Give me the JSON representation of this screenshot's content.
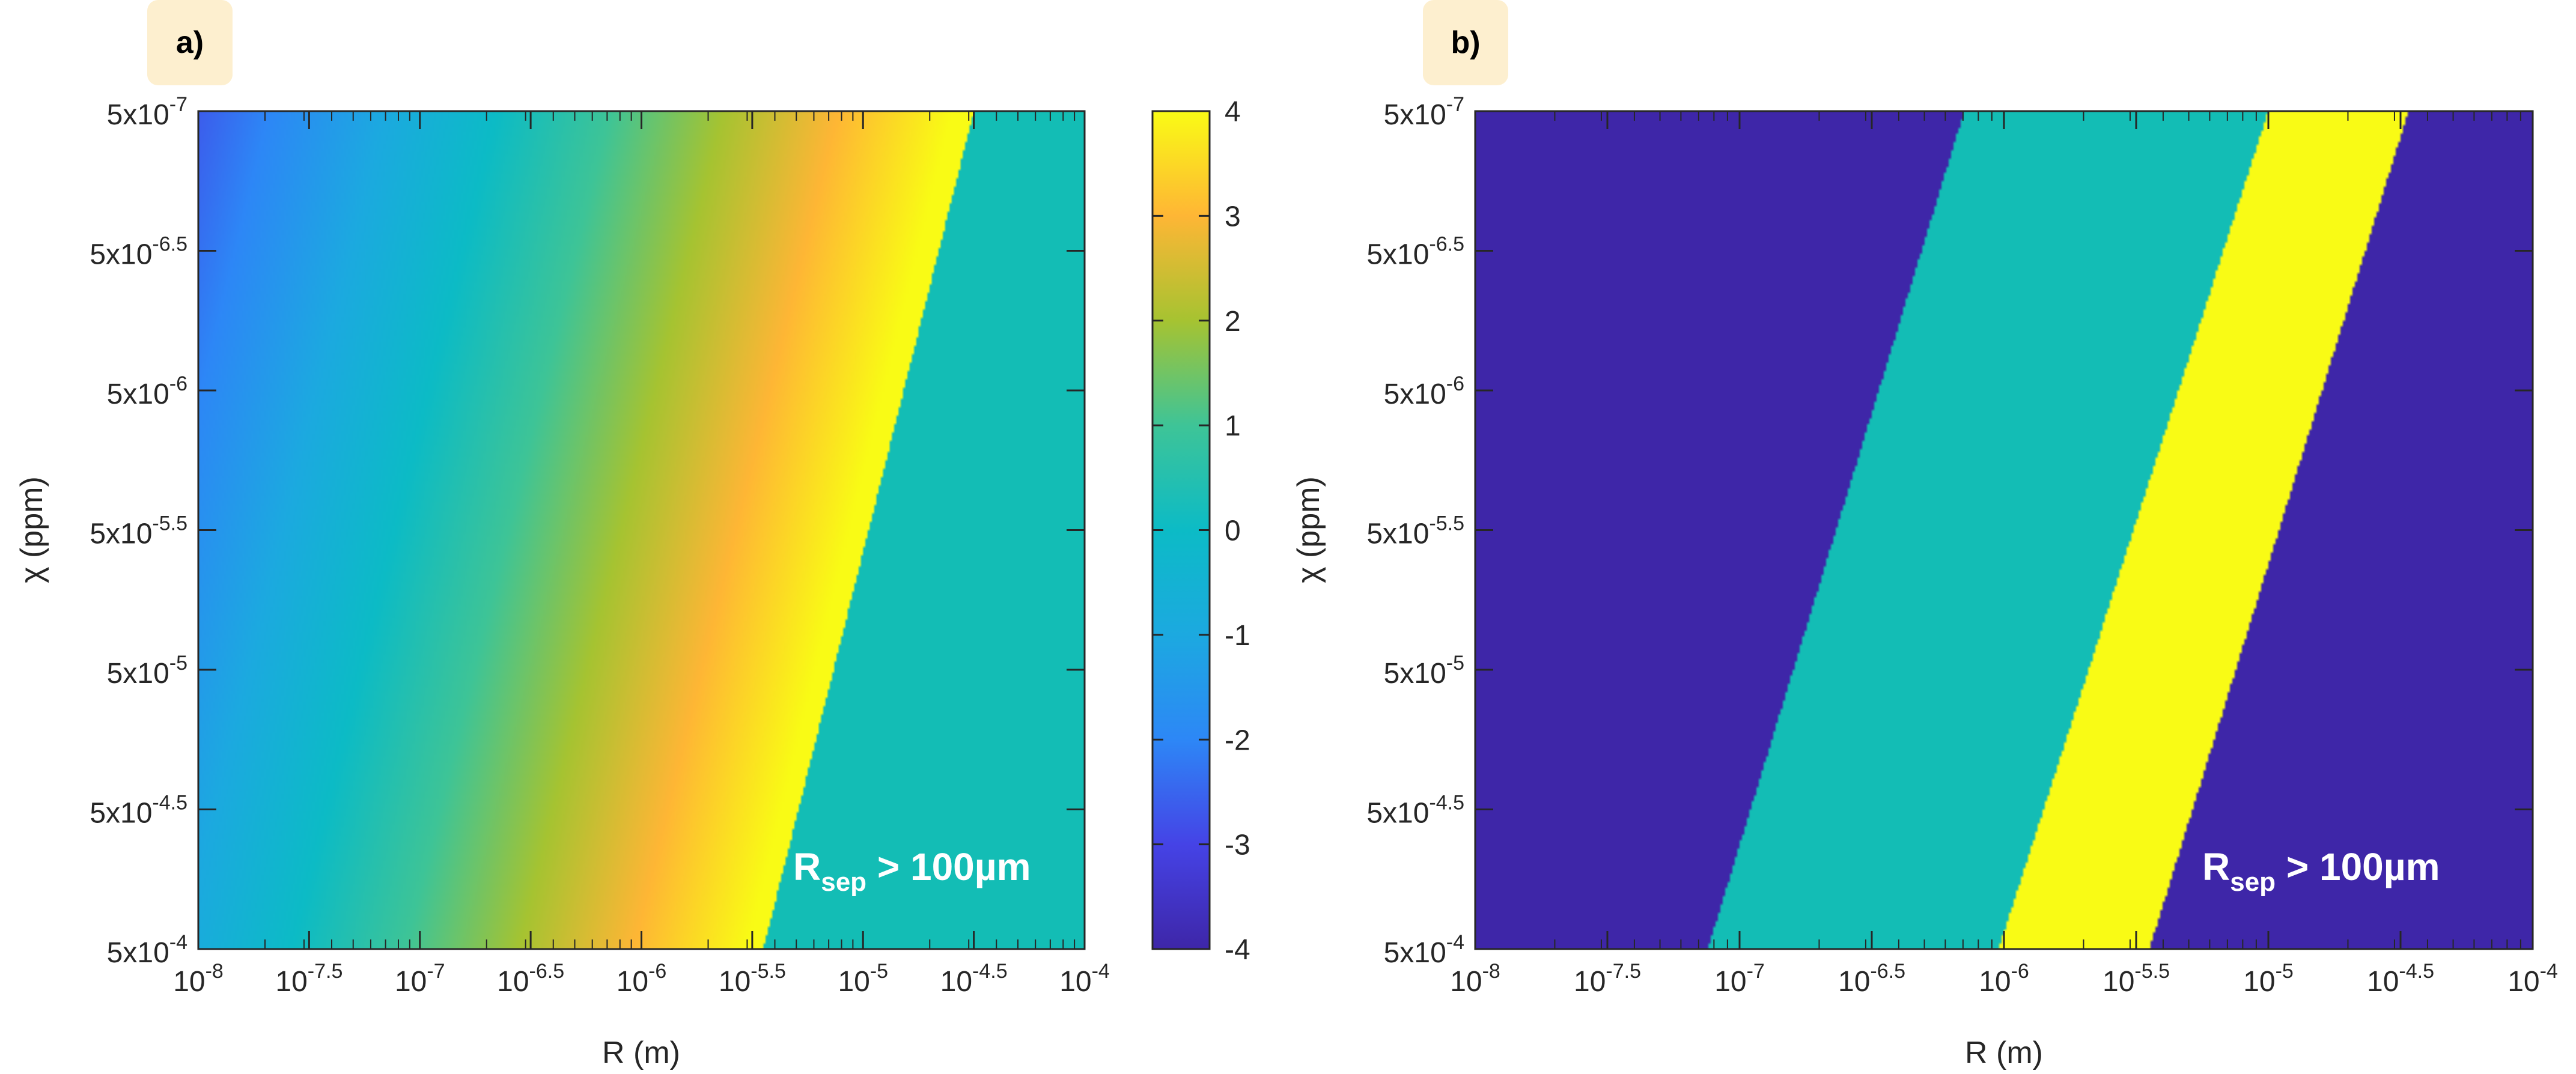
{
  "figure": {
    "panels": [
      "a)",
      "b)"
    ]
  },
  "colors": {
    "badge_bg": "#fdefcf",
    "axis": "#262626",
    "parula_dark": "#3e26a8",
    "teal": "#13bdb5",
    "yellow": "#f9fb15",
    "white_text": "#ffffff"
  },
  "chart_data": [
    {
      "panel": "a)",
      "type": "heatmap",
      "xlabel": "R (m)",
      "ylabel": "χ (ppm)",
      "xscale": "log10",
      "yscale": "log10",
      "xlim": [
        -8,
        -4
      ],
      "ylim_exponents": [
        -7,
        -4
      ],
      "xticks": [
        {
          "base": "10",
          "exp": "-8"
        },
        {
          "base": "10",
          "exp": "-7.5"
        },
        {
          "base": "10",
          "exp": "-7"
        },
        {
          "base": "10",
          "exp": "-6.5"
        },
        {
          "base": "10",
          "exp": "-6"
        },
        {
          "base": "10",
          "exp": "-5.5"
        },
        {
          "base": "10",
          "exp": "-5"
        },
        {
          "base": "10",
          "exp": "-4.5"
        },
        {
          "base": "10",
          "exp": "-4"
        }
      ],
      "yticks": [
        {
          "base": "5x10",
          "exp": "-7"
        },
        {
          "base": "5x10",
          "exp": "-6.5"
        },
        {
          "base": "5x10",
          "exp": "-6"
        },
        {
          "base": "5x10",
          "exp": "-5.5"
        },
        {
          "base": "5x10",
          "exp": "-5"
        },
        {
          "base": "5x10",
          "exp": "-4.5"
        },
        {
          "base": "5x10",
          "exp": "-4"
        }
      ],
      "colorbar": {
        "range": [
          -4,
          4
        ],
        "ticks": [
          "4",
          "3",
          "2",
          "1",
          "0",
          "-1",
          "-2",
          "-3",
          "-4"
        ]
      },
      "field": "value ≈ 1.95·(log10 R + 6.5) + 0.6·(log10 χ + 7) + 0.3, clipped to [-4, 4]",
      "separation_boundary": {
        "log10R_at_chi_min": -4.5,
        "log10R_at_chi_max": -5.45,
        "region_value": 0
      },
      "annotation": {
        "main": "R",
        "sub": "sep",
        "tail": " > 100µm"
      }
    },
    {
      "panel": "b)",
      "type": "heatmap",
      "xlabel": "R (m)",
      "ylabel": "χ (ppm)",
      "xscale": "log10",
      "yscale": "log10",
      "xlim": [
        -8,
        -4
      ],
      "ylim_exponents": [
        -7,
        -4
      ],
      "xticks": [
        {
          "base": "10",
          "exp": "-8"
        },
        {
          "base": "10",
          "exp": "-7.5"
        },
        {
          "base": "10",
          "exp": "-7"
        },
        {
          "base": "10",
          "exp": "-6.5"
        },
        {
          "base": "10",
          "exp": "-6"
        },
        {
          "base": "10",
          "exp": "-5.5"
        },
        {
          "base": "10",
          "exp": "-5"
        },
        {
          "base": "10",
          "exp": "-4.5"
        },
        {
          "base": "10",
          "exp": "-4"
        }
      ],
      "yticks": [
        {
          "base": "5x10",
          "exp": "-7"
        },
        {
          "base": "5x10",
          "exp": "-6.5"
        },
        {
          "base": "5x10",
          "exp": "-6"
        },
        {
          "base": "5x10",
          "exp": "-5.5"
        },
        {
          "base": "5x10",
          "exp": "-5"
        },
        {
          "base": "5x10",
          "exp": "-4.5"
        },
        {
          "base": "5x10",
          "exp": "-4"
        }
      ],
      "bands": [
        {
          "name": "teal-band",
          "log10R_at_chi_min": [
            -6.15,
            -5.0
          ],
          "log10R_at_chi_max": [
            -7.12,
            -6.02
          ]
        },
        {
          "name": "yellow-band",
          "log10R_at_chi_min": [
            -5.0,
            -4.47
          ],
          "log10R_at_chi_max": [
            -6.02,
            -5.45
          ]
        }
      ],
      "annotation": {
        "main": "R",
        "sub": "sep",
        "tail": " > 100µm"
      }
    }
  ]
}
